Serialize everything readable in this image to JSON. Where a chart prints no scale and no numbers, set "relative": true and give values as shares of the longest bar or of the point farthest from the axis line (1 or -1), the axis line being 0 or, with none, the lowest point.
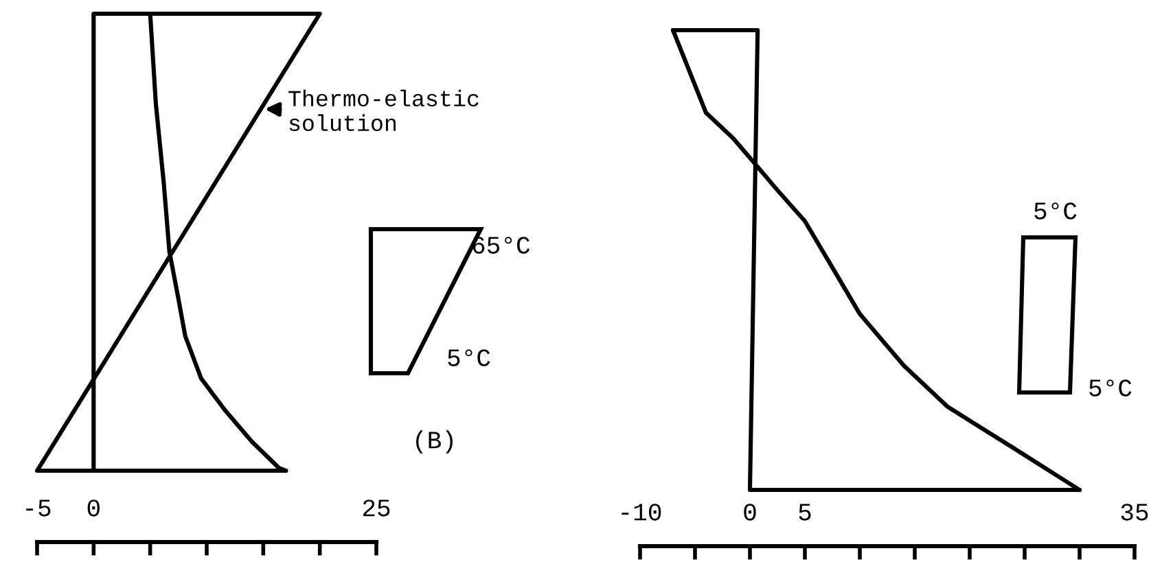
{
  "chart_data": [
    {
      "type": "line",
      "relative": true,
      "tick_labels": "x",
      "grid": false,
      "xlim": [
        -5,
        25
      ],
      "xticks": [
        -5,
        0,
        {
          "value": 5,
          "label": null
        },
        {
          "value": 10,
          "label": null
        },
        {
          "value": 15,
          "label": null
        },
        {
          "value": 20,
          "label": null
        },
        25
      ],
      "series": [
        {
          "color": "#000000",
          "x": [
            17,
            -5,
            20,
            0,
            0
          ],
          "values": [
            0.135,
            0.135,
            1,
            1,
            0.135
          ]
        },
        {
          "color": "#000000",
          "x": [
            5,
            5.5,
            6.2,
            6.7,
            7.5,
            8.1,
            9.5,
            11.6,
            14,
            16.4,
            17
          ],
          "values": [
            1,
            0.83,
            0.68,
            0.55,
            0.46,
            0.39,
            0.31,
            0.25,
            0.19,
            0.14,
            0.135
          ]
        }
      ],
      "annotations": [
        {
          "text": "Thermo-elastic\nsolution",
          "x": 14.8,
          "y": 0.82
        },
        "65°C",
        "5°C",
        "(B)"
      ]
    },
    {
      "type": "line",
      "relative": true,
      "tick_labels": "x",
      "grid": false,
      "xlim": [
        -10,
        35
      ],
      "xticks": [
        -10,
        {
          "value": -5,
          "label": null
        },
        0,
        5,
        {
          "value": 10,
          "label": null
        },
        {
          "value": 15,
          "label": null
        },
        {
          "value": 20,
          "label": null
        },
        {
          "value": 25,
          "label": null
        },
        {
          "value": 30,
          "label": null
        },
        35
      ],
      "series": [
        {
          "color": "#000000",
          "x": [
            -7,
            0.7,
            0,
            30
          ],
          "values": [
            1,
            1,
            0.109,
            0.109
          ]
        },
        {
          "color": "#000000",
          "x": [
            -7,
            -5.5,
            -4,
            -1.5,
            0.5,
            2.5,
            5,
            7.5,
            10,
            14,
            18,
            21,
            24,
            28,
            30
          ],
          "values": [
            1,
            0.92,
            0.84,
            0.79,
            0.74,
            0.69,
            0.63,
            0.54,
            0.45,
            0.35,
            0.27,
            0.23,
            0.19,
            0.136,
            0.109
          ]
        }
      ],
      "annotations": [
        "5°C",
        "5°C"
      ]
    }
  ]
}
